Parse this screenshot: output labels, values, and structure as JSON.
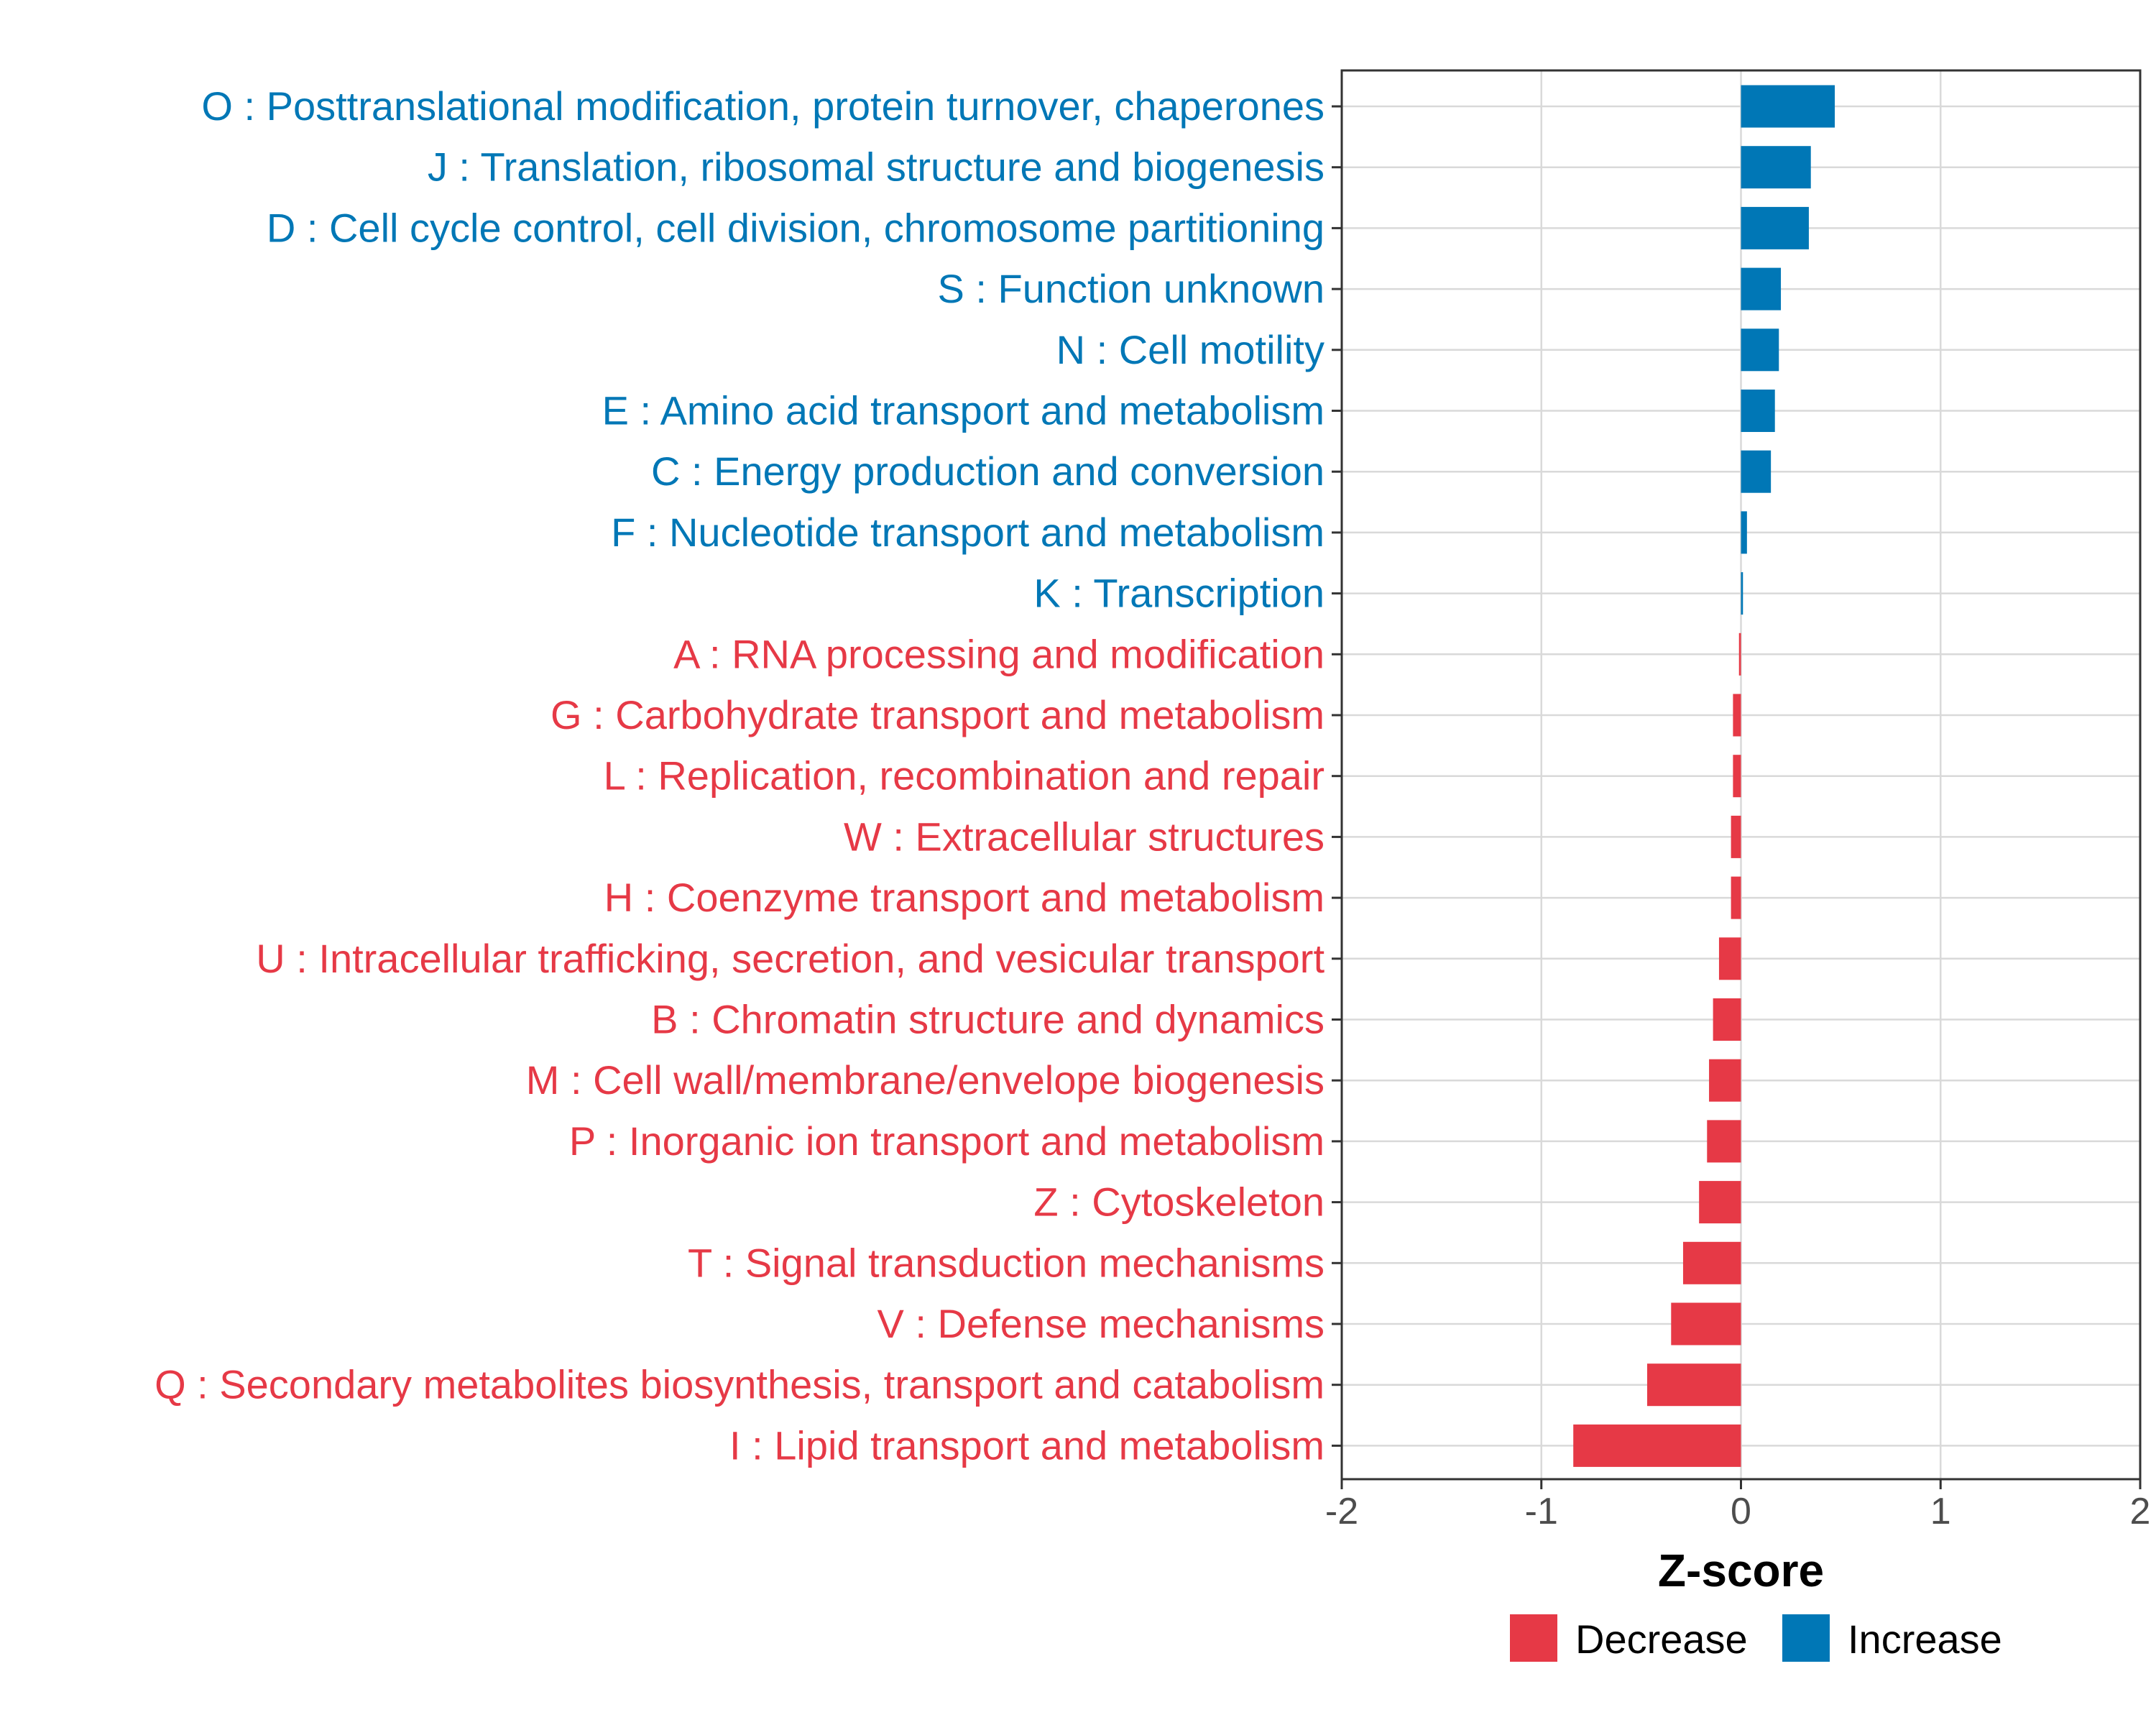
{
  "chart_data": {
    "type": "bar",
    "orientation": "horizontal",
    "title": "",
    "xlabel": "Z-score",
    "ylabel": "",
    "xlim": [
      -2,
      2
    ],
    "xticks": [
      -2,
      -1,
      0,
      1,
      2
    ],
    "xtick_labels": [
      "-2",
      "-1",
      "0",
      "1",
      "2"
    ],
    "grid": true,
    "legend_position": "bottom",
    "colors": {
      "Decrease": "#e63946",
      "Increase": "#0077b6"
    },
    "legend": [
      {
        "label": "Decrease",
        "color": "#e63946"
      },
      {
        "label": "Increase",
        "color": "#0077b6"
      }
    ],
    "categories": [
      "O : Posttranslational modification, protein turnover, chaperones",
      "J : Translation, ribosomal structure and biogenesis",
      "D : Cell cycle control, cell division, chromosome partitioning",
      "S : Function unknown",
      "N : Cell motility",
      "E : Amino acid transport and metabolism",
      "C : Energy production and conversion",
      "F : Nucleotide transport and metabolism",
      "K : Transcription",
      "A : RNA processing and modification",
      "G : Carbohydrate transport and metabolism",
      "L : Replication, recombination and repair",
      "W : Extracellular structures",
      "H : Coenzyme transport and metabolism",
      "U : Intracellular trafficking, secretion, and vesicular transport",
      "B : Chromatin structure and dynamics",
      "M : Cell wall/membrane/envelope biogenesis",
      "P : Inorganic ion transport and metabolism",
      "Z : Cytoskeleton",
      "T : Signal transduction mechanisms",
      "V : Defense mechanisms",
      "Q : Secondary metabolites biosynthesis, transport and catabolism",
      "I : Lipid transport and metabolism"
    ],
    "values": [
      0.47,
      0.35,
      0.34,
      0.2,
      0.19,
      0.17,
      0.15,
      0.03,
      0.01,
      -0.01,
      -0.04,
      -0.04,
      -0.05,
      -0.05,
      -0.11,
      -0.14,
      -0.16,
      -0.17,
      -0.21,
      -0.29,
      -0.35,
      -0.47,
      -0.84
    ],
    "groups": [
      "Increase",
      "Increase",
      "Increase",
      "Increase",
      "Increase",
      "Increase",
      "Increase",
      "Increase",
      "Increase",
      "Decrease",
      "Decrease",
      "Decrease",
      "Decrease",
      "Decrease",
      "Decrease",
      "Decrease",
      "Decrease",
      "Decrease",
      "Decrease",
      "Decrease",
      "Decrease",
      "Decrease",
      "Decrease"
    ]
  }
}
